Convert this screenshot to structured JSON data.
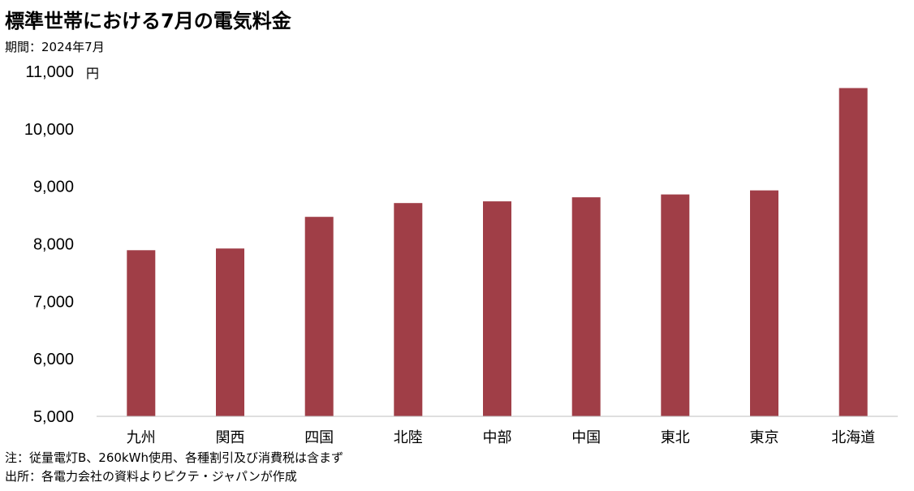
{
  "chart_data": {
    "type": "bar",
    "title": "標準世帯における7月の電気料金",
    "subtitle": "期間：2024年7月",
    "unit": "円",
    "categories": [
      "九州",
      "関西",
      "四国",
      "北陸",
      "中部",
      "中国",
      "東北",
      "東京",
      "北海道"
    ],
    "values": [
      7890,
      7920,
      8470,
      8710,
      8740,
      8810,
      8860,
      8930,
      10710
    ],
    "ylim": [
      5000,
      11000
    ],
    "yticks": [
      5000,
      6000,
      7000,
      8000,
      9000,
      10000,
      11000
    ],
    "ytick_labels": [
      "5,000",
      "6,000",
      "7,000",
      "8,000",
      "9,000",
      "10,000",
      "11,000"
    ],
    "grid": false,
    "bar_color": "#A03E47"
  },
  "notes": [
    "注：従量電灯B、260kWh使用、各種割引及び消費税は含まず",
    "出所：各電力会社の資料よりピクテ・ジャパンが作成"
  ]
}
